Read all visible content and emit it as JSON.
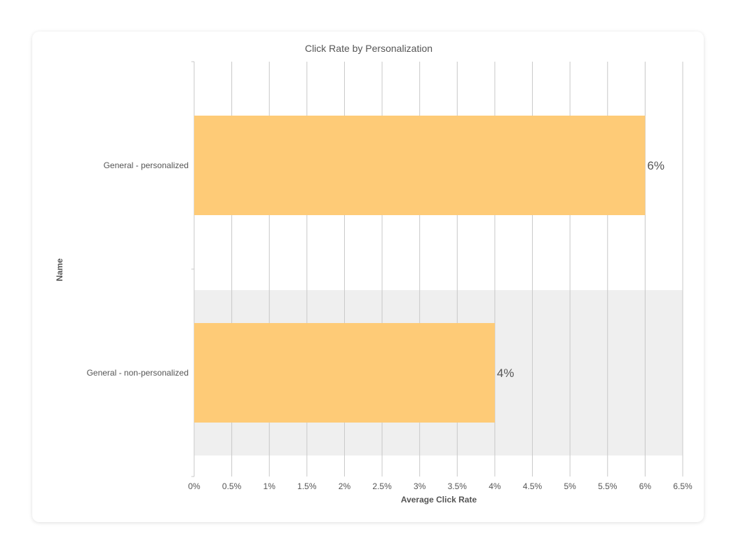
{
  "chart_data": {
    "type": "bar",
    "orientation": "horizontal",
    "title": "Click Rate by Personalization",
    "xlabel": "Average Click Rate",
    "ylabel": "Name",
    "categories": [
      "General - personalized",
      "General - non-personalized"
    ],
    "values": [
      6,
      4
    ],
    "data_labels": [
      "6%",
      "4%"
    ],
    "xlim": [
      0,
      6.5
    ],
    "xticks": [
      0,
      0.5,
      1,
      1.5,
      2,
      2.5,
      3,
      3.5,
      4,
      4.5,
      5,
      5.5,
      6,
      6.5
    ],
    "xtick_labels": [
      "0%",
      "0.5%",
      "1%",
      "1.5%",
      "2%",
      "2.5%",
      "3%",
      "3.5%",
      "4%",
      "4.5%",
      "5%",
      "5.5%",
      "6%",
      "6.5%"
    ],
    "grid": true,
    "bar_color": "#fecb77",
    "band_color": "#efefef",
    "grid_color": "#c8c8c8"
  }
}
